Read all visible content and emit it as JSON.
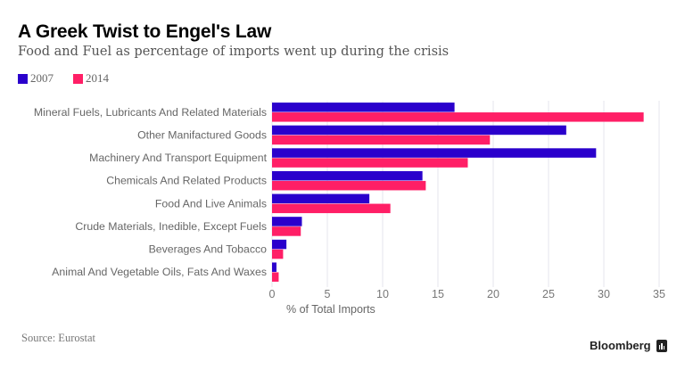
{
  "header": {
    "title": "A Greek Twist to Engel's Law",
    "subtitle": "Food and Fuel as percentage of imports went up during the crisis"
  },
  "footer": {
    "source": "Source: Eurostat",
    "brand": "Bloomberg",
    "brand_icon": "bloomberg-chart-icon"
  },
  "chart_data": {
    "type": "bar",
    "orientation": "horizontal",
    "title": "A Greek Twist to Engel's Law",
    "subtitle": "Food and Fuel as percentage of imports went up during the crisis",
    "xlabel": "% of Total Imports",
    "ylabel": "",
    "xlim": [
      0,
      35
    ],
    "xticks": [
      0,
      5,
      10,
      15,
      20,
      25,
      30,
      35
    ],
    "grid": true,
    "legend_position": "top-left",
    "categories": [
      "Mineral Fuels, Lubricants And Related Materials",
      "Other Manifactured Goods",
      "Machinery And Transport Equipment",
      "Chemicals And Related Products",
      "Food And Live Animals",
      "Crude Materials, Inedible, Except Fuels",
      "Beverages And Tobacco",
      "Animal And Vegetable Oils, Fats And Waxes"
    ],
    "series": [
      {
        "name": "2007",
        "color": "#2a00cc",
        "values": [
          16.5,
          26.6,
          29.3,
          13.6,
          8.8,
          2.7,
          1.3,
          0.4
        ]
      },
      {
        "name": "2014",
        "color": "#ff1f66",
        "values": [
          33.6,
          19.7,
          17.7,
          13.9,
          10.7,
          2.6,
          1.0,
          0.6
        ]
      }
    ]
  }
}
